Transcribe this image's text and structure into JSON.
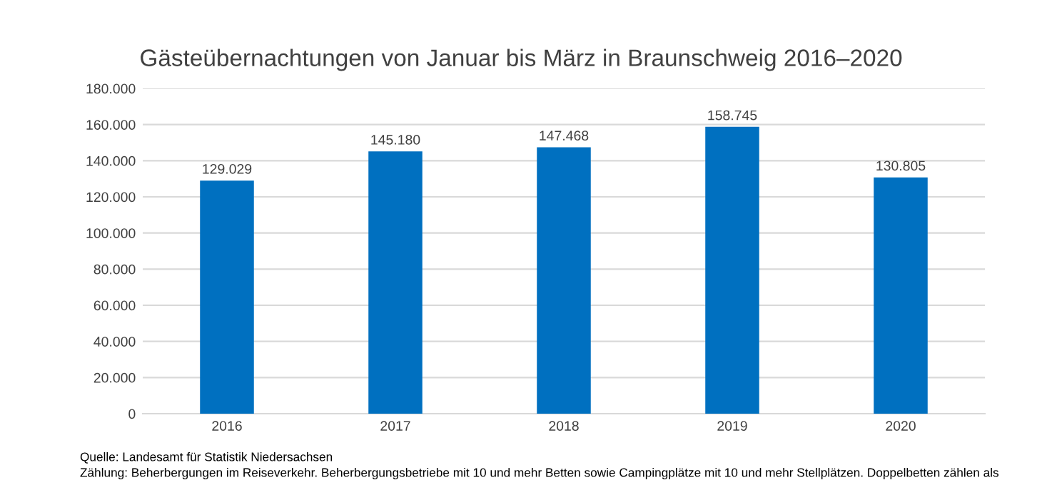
{
  "chart_data": {
    "type": "bar",
    "title": "Gästeübernachtungen von Januar bis März in Braunschweig 2016–2020",
    "categories": [
      "2016",
      "2017",
      "2018",
      "2019",
      "2020"
    ],
    "values": [
      129029,
      145180,
      147468,
      158745,
      130805
    ],
    "value_labels": [
      "129.029",
      "145.180",
      "147.468",
      "158.745",
      "130.805"
    ],
    "color": "#0070c0",
    "ylim": [
      0,
      180000
    ],
    "yticks": [
      {
        "value": 0,
        "label": "0"
      },
      {
        "value": 20000,
        "label": "20.000"
      },
      {
        "value": 40000,
        "label": "40.000"
      },
      {
        "value": 60000,
        "label": "60.000"
      },
      {
        "value": 80000,
        "label": "80.000"
      },
      {
        "value": 100000,
        "label": "100.000"
      },
      {
        "value": 120000,
        "label": "120.000"
      },
      {
        "value": 140000,
        "label": "140.000"
      },
      {
        "value": 160000,
        "label": "160.000"
      },
      {
        "value": 180000,
        "label": "180.000"
      }
    ],
    "grid": "y",
    "annotations": [
      "Quelle: Landesamt für Statistik Niedersachsen",
      "Zählung: Beherbergungen im Reiseverkehr. Beherbergungsbetriebe mit 10 und mehr Betten sowie Campingplätze mit 10 und mehr Stellplätzen. Doppelbetten zählen als"
    ]
  }
}
